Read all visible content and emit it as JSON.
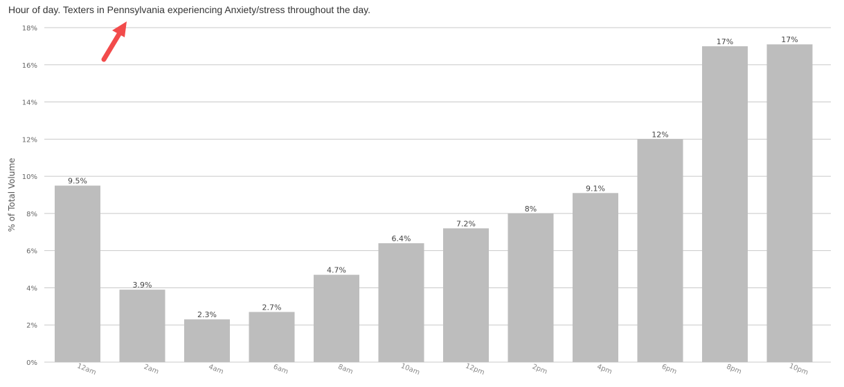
{
  "chart_data": {
    "type": "bar",
    "title": "Hour of day. Texters in Pennsylvania experiencing Anxiety/stress throughout the day.",
    "xlabel": "",
    "ylabel": "% of Total Volume",
    "categories": [
      "12am",
      "2am",
      "4am",
      "6am",
      "8am",
      "10am",
      "12pm",
      "2pm",
      "4pm",
      "6pm",
      "8pm",
      "10pm"
    ],
    "values": [
      9.5,
      3.9,
      2.3,
      2.7,
      4.7,
      6.4,
      7.2,
      8,
      9.1,
      12,
      17,
      17.1
    ],
    "data_labels": [
      "9.5%",
      "3.9%",
      "2.3%",
      "2.7%",
      "4.7%",
      "6.4%",
      "7.2%",
      "8%",
      "9.1%",
      "12%",
      "17%",
      "17%"
    ],
    "y_ticks": [
      0,
      2,
      4,
      6,
      8,
      10,
      12,
      14,
      16,
      18
    ],
    "y_tick_labels": [
      "0%",
      "2%",
      "4%",
      "6%",
      "8%",
      "10%",
      "12%",
      "14%",
      "16%",
      "18%"
    ],
    "ylim": [
      0,
      18
    ],
    "grid": true,
    "legend": "none",
    "colors": {
      "bar": "#bdbdbd",
      "grid": "#c8c8c8",
      "annotation_arrow": "#f24b4b"
    },
    "annotations": [
      {
        "kind": "arrow",
        "icon": "arrow-up-right-icon",
        "color": "#f24b4b"
      }
    ]
  }
}
